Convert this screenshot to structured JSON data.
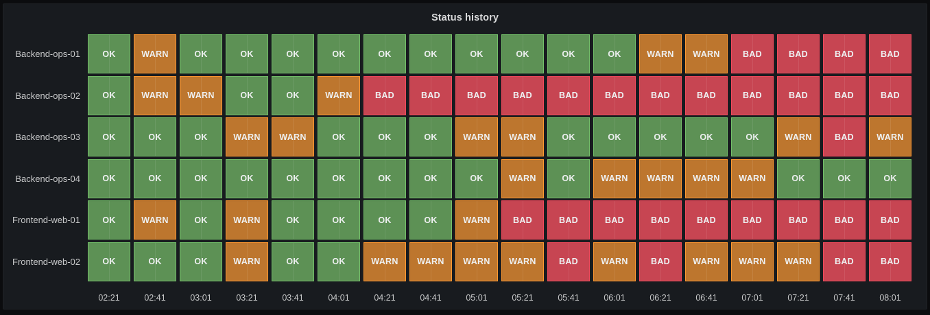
{
  "panel": {
    "title": "Status history"
  },
  "chart_data": {
    "type": "heatmap",
    "variant": "status-history",
    "title": "Status history",
    "legend_position": "none",
    "grid": "faint-vertical-lines",
    "x": [
      "02:21",
      "02:41",
      "03:01",
      "03:21",
      "03:41",
      "04:01",
      "04:21",
      "04:41",
      "05:01",
      "05:21",
      "05:41",
      "06:01",
      "06:21",
      "06:41",
      "07:01",
      "07:21",
      "07:41",
      "08:01"
    ],
    "series": [
      {
        "name": "Backend-ops-01",
        "values": [
          "OK",
          "WARN",
          "OK",
          "OK",
          "OK",
          "OK",
          "OK",
          "OK",
          "OK",
          "OK",
          "OK",
          "OK",
          "WARN",
          "WARN",
          "BAD",
          "BAD",
          "BAD",
          "BAD"
        ]
      },
      {
        "name": "Backend-ops-02",
        "values": [
          "OK",
          "WARN",
          "WARN",
          "OK",
          "OK",
          "WARN",
          "BAD",
          "BAD",
          "BAD",
          "BAD",
          "BAD",
          "BAD",
          "BAD",
          "BAD",
          "BAD",
          "BAD",
          "BAD",
          "BAD"
        ]
      },
      {
        "name": "Backend-ops-03",
        "values": [
          "OK",
          "OK",
          "OK",
          "WARN",
          "WARN",
          "OK",
          "OK",
          "OK",
          "WARN",
          "WARN",
          "OK",
          "OK",
          "OK",
          "OK",
          "OK",
          "WARN",
          "BAD",
          "WARN"
        ]
      },
      {
        "name": "Backend-ops-04",
        "values": [
          "OK",
          "OK",
          "OK",
          "OK",
          "OK",
          "OK",
          "OK",
          "OK",
          "OK",
          "WARN",
          "OK",
          "WARN",
          "WARN",
          "WARN",
          "WARN",
          "OK",
          "OK",
          "OK"
        ]
      },
      {
        "name": "Frontend-web-01",
        "values": [
          "OK",
          "WARN",
          "OK",
          "WARN",
          "OK",
          "OK",
          "OK",
          "OK",
          "WARN",
          "BAD",
          "BAD",
          "BAD",
          "BAD",
          "BAD",
          "BAD",
          "BAD",
          "BAD",
          "BAD"
        ]
      },
      {
        "name": "Frontend-web-02",
        "values": [
          "OK",
          "OK",
          "OK",
          "WARN",
          "OK",
          "OK",
          "WARN",
          "WARN",
          "WARN",
          "WARN",
          "BAD",
          "WARN",
          "BAD",
          "WARN",
          "WARN",
          "WARN",
          "BAD",
          "BAD"
        ]
      }
    ],
    "states": {
      "OK": {
        "fill": "#5D9155",
        "border": "#73BF69"
      },
      "WARN": {
        "fill": "#BD762E",
        "border": "#FF9830"
      },
      "BAD": {
        "fill": "#C74552",
        "border": "#F2495C"
      }
    }
  },
  "colors": {
    "page_bg": "#0b0c0e",
    "panel_bg": "#181b1f",
    "title_text": "#d8d9da",
    "axis_text": "#c7c8c9",
    "cell_text": "#eef0f1"
  }
}
